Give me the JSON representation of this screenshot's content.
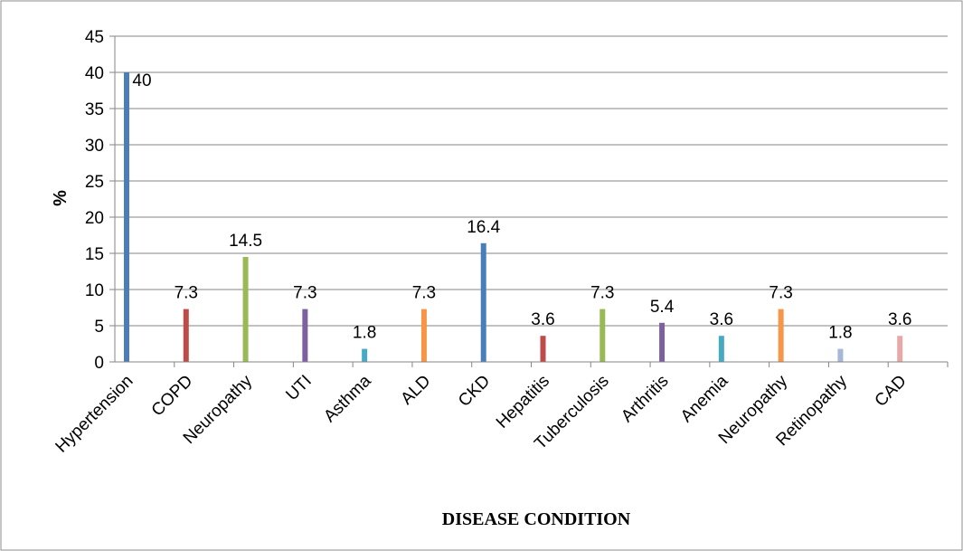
{
  "chart_data": {
    "type": "bar",
    "categories": [
      "Hypertension",
      "COPD",
      "Neuropathy",
      "UTI",
      "Asthma",
      "ALD",
      "CKD",
      "Hepatitis",
      "Tuberculosis",
      "Arthritis",
      "Anemia",
      "Neuropathy",
      "Retinopathy",
      "CAD"
    ],
    "values": [
      40,
      7.3,
      14.5,
      7.3,
      1.8,
      7.3,
      16.4,
      3.6,
      7.3,
      5.4,
      3.6,
      7.3,
      1.8,
      3.6
    ],
    "data_labels": [
      "40",
      "7.3",
      "14.5",
      "7.3",
      "1.8",
      "7.3",
      "16.4",
      "3.6",
      "7.3",
      "5.4",
      "3.6",
      "7.3",
      "1.8",
      "3.6"
    ],
    "colors": [
      "#4a7ebb",
      "#be4b48",
      "#98b954",
      "#7d60a0",
      "#46aac5",
      "#f79646",
      "#4a7ebb",
      "#be4b48",
      "#98b954",
      "#7d60a0",
      "#46aac5",
      "#f79646",
      "#a5b8d9",
      "#e6a9a8"
    ],
    "title": "",
    "xlabel": "DISEASE CONDITION",
    "ylabel": "%",
    "ylim": [
      0,
      45
    ],
    "yticks": [
      "0",
      "5",
      "10",
      "15",
      "20",
      "25",
      "30",
      "35",
      "40",
      "45"
    ],
    "grid": true,
    "legend": "none"
  }
}
